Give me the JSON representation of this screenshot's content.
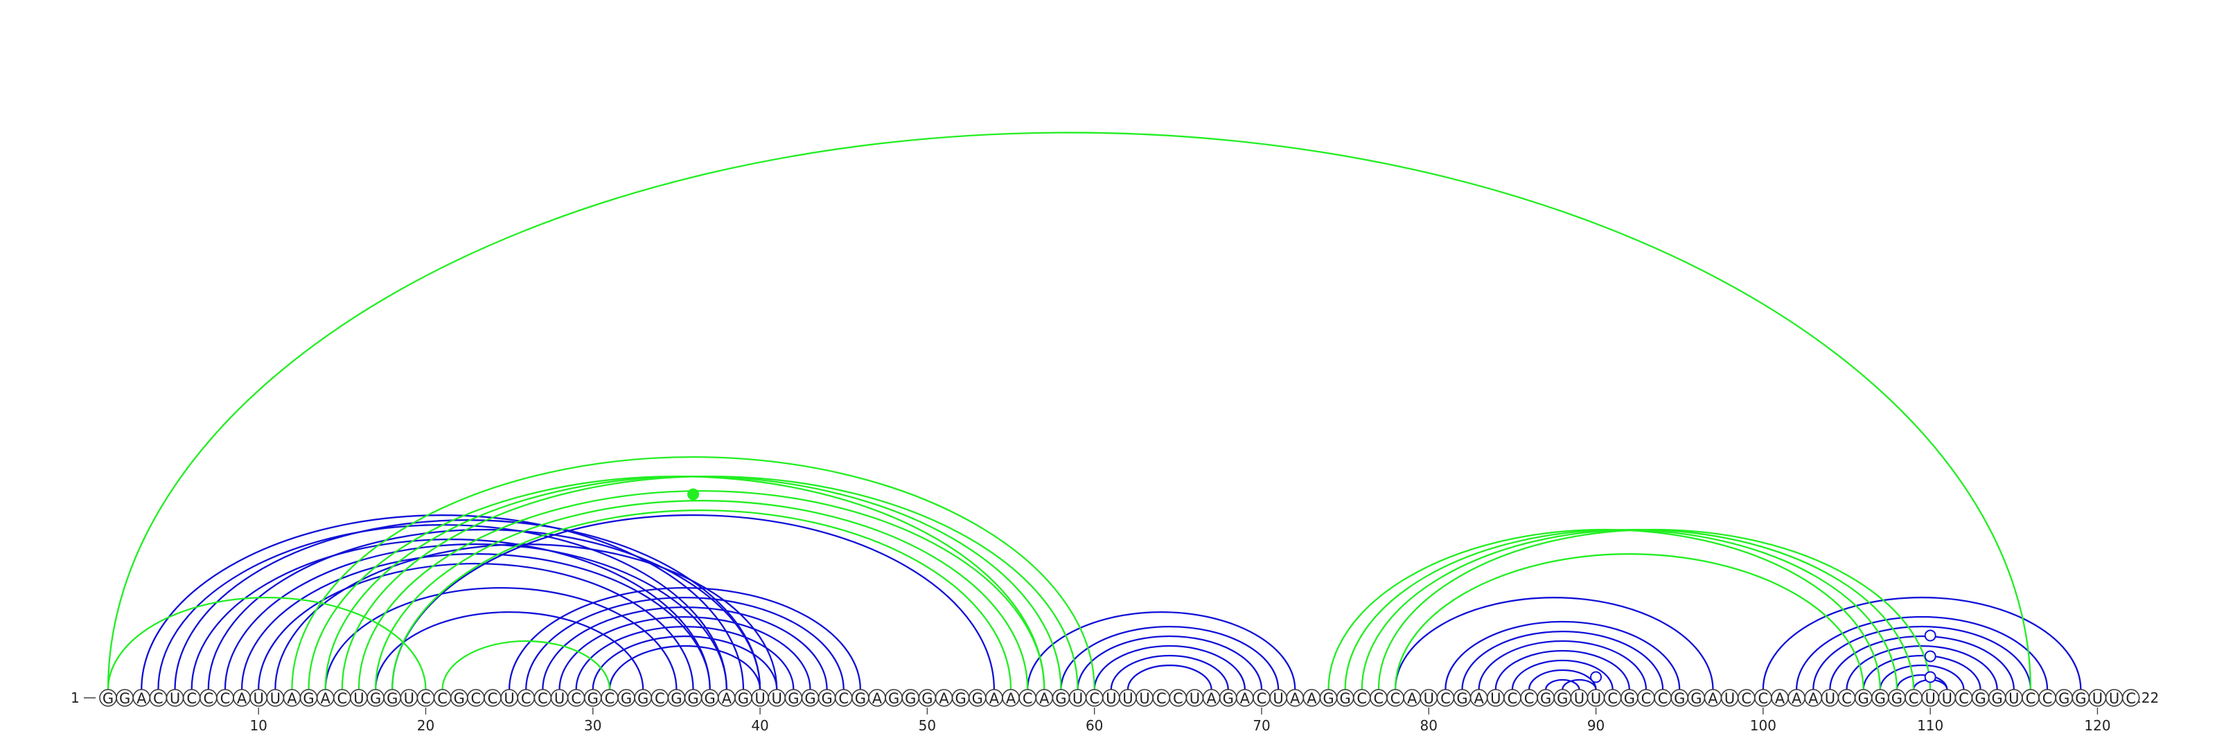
{
  "sequence": "GGACUCCCAUUAGACUGGUCCGCCUCCUCGCGGCGGGAGUUGGGCGAGGGAGGAACAGUCUUUCCUAGACUAAGGCCCAUCGAUCCGGUUCGCCGGAUCCAAAUCGGGCUUCGGUCCGGUUC",
  "labels": {
    "start": "1",
    "end": "122"
  },
  "ticks": [
    "10",
    "20",
    "30",
    "40",
    "50",
    "60",
    "70",
    "80",
    "90",
    "100",
    "110",
    "120"
  ],
  "colors": {
    "blue": "#1010d8",
    "green": "#22ee22",
    "text": "#222222"
  },
  "blue_pairs": [
    [
      3,
      39
    ],
    [
      4,
      38
    ],
    [
      5,
      40
    ],
    [
      6,
      37
    ],
    [
      7,
      40
    ],
    [
      8,
      38
    ],
    [
      9,
      37
    ],
    [
      10,
      36
    ],
    [
      11,
      41
    ],
    [
      14,
      35
    ],
    [
      17,
      33
    ],
    [
      18,
      54
    ],
    [
      25,
      46
    ],
    [
      26,
      45
    ],
    [
      27,
      44
    ],
    [
      28,
      43
    ],
    [
      29,
      42
    ],
    [
      30,
      41
    ],
    [
      31,
      40
    ],
    [
      56,
      72
    ],
    [
      58,
      71
    ],
    [
      59,
      70
    ],
    [
      60,
      69
    ],
    [
      61,
      68
    ],
    [
      62,
      67
    ],
    [
      78,
      97
    ],
    [
      81,
      95
    ],
    [
      82,
      94
    ],
    [
      83,
      93
    ],
    [
      84,
      92
    ],
    [
      85,
      91
    ],
    [
      86,
      90
    ],
    [
      87,
      89
    ],
    [
      88,
      90
    ],
    [
      89,
      89
    ],
    [
      100,
      119
    ],
    [
      102,
      117
    ],
    [
      103,
      116
    ],
    [
      104,
      115
    ],
    [
      105,
      114
    ],
    [
      106,
      113
    ],
    [
      107,
      112
    ],
    [
      108,
      111
    ],
    [
      109,
      111
    ],
    [
      110,
      110
    ]
  ],
  "green_pairs": [
    [
      1,
      116
    ],
    [
      1,
      20
    ],
    [
      21,
      31
    ],
    [
      12,
      60
    ],
    [
      13,
      57
    ],
    [
      14,
      58
    ],
    [
      15,
      59
    ],
    [
      16,
      57
    ],
    [
      17,
      56
    ],
    [
      18,
      55
    ],
    [
      74,
      107
    ],
    [
      75,
      108
    ],
    [
      76,
      109
    ],
    [
      77,
      110
    ],
    [
      78,
      106
    ]
  ],
  "dots": [
    {
      "pos": 36,
      "color": "green"
    },
    {
      "pos": 90,
      "color": "blue"
    },
    {
      "pos": 110,
      "color": "blue"
    },
    {
      "pos": 110,
      "color": "blue"
    },
    {
      "pos": 110,
      "color": "blue"
    }
  ]
}
